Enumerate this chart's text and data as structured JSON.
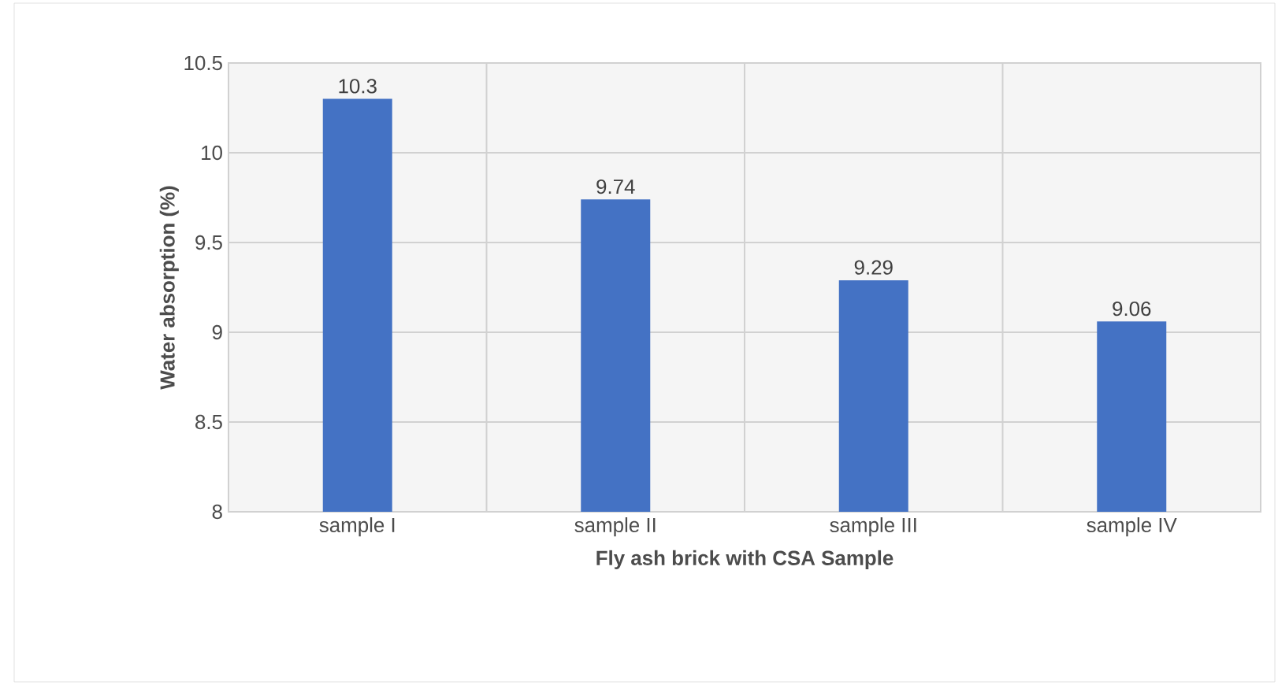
{
  "chart_data": {
    "type": "bar",
    "xlabel": "Fly ash brick with CSA Sample",
    "ylabel": "Water absorption (%)",
    "categories": [
      "sample I",
      "sample II",
      "sample III",
      "sample IV"
    ],
    "values": [
      10.3,
      9.74,
      9.29,
      9.06
    ],
    "color": "#4472c4",
    "ylim": [
      8,
      10.5
    ],
    "yticks": [
      8,
      8.5,
      9,
      9.5,
      10,
      10.5
    ],
    "grid": true,
    "data_labels": true
  }
}
